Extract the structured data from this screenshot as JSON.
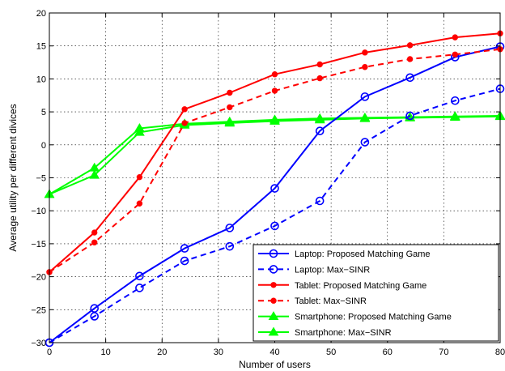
{
  "chart_data": {
    "type": "line",
    "xlabel": "Number of users",
    "ylabel": "Average utility per different divices",
    "xlim": [
      0,
      80
    ],
    "ylim": [
      -30,
      20
    ],
    "xticks": [
      0,
      10,
      20,
      30,
      40,
      50,
      60,
      70,
      80
    ],
    "yticks": [
      -30,
      -25,
      -20,
      -15,
      -10,
      -5,
      0,
      5,
      10,
      15,
      20
    ],
    "grid": true,
    "legend_position": "bottom-right",
    "x": [
      0,
      8,
      16,
      24,
      32,
      40,
      48,
      56,
      64,
      72,
      80
    ],
    "series": [
      {
        "name": "Laptop: Proposed Matching Game",
        "values": [
          -30,
          -24.8,
          -19.9,
          -15.7,
          -12.6,
          -6.6,
          2.1,
          7.3,
          10.2,
          13.3,
          14.9
        ],
        "color": "#0000ff",
        "dash": "solid",
        "marker": "circle-open"
      },
      {
        "name": "Laptop: Max−SINR",
        "values": [
          -30,
          -26.0,
          -21.7,
          -17.6,
          -15.4,
          -12.3,
          -8.5,
          0.4,
          4.4,
          6.7,
          8.5
        ],
        "color": "#0000ff",
        "dash": "dashed",
        "marker": "circle-open"
      },
      {
        "name": "Tablet: Proposed Matching Game",
        "values": [
          -19.3,
          -13.3,
          -4.9,
          5.4,
          7.9,
          10.7,
          12.2,
          14.0,
          15.1,
          16.3,
          16.9
        ],
        "color": "#ff0000",
        "dash": "solid",
        "marker": "dot"
      },
      {
        "name": "Tablet: Max−SINR",
        "values": [
          -19.3,
          -14.8,
          -8.9,
          3.3,
          5.7,
          8.2,
          10.1,
          11.8,
          13.0,
          13.7,
          14.5
        ],
        "color": "#ff0000",
        "dash": "dashed",
        "marker": "dot"
      },
      {
        "name": "Smartphone: Proposed Matching Game",
        "values": [
          -7.5,
          -3.5,
          2.5,
          3.2,
          3.5,
          3.8,
          4.0,
          4.1,
          4.2,
          4.3,
          4.4
        ],
        "color": "#00ff00",
        "dash": "solid",
        "marker": "triangle"
      },
      {
        "name": "Smartphone: Max−SINR",
        "values": [
          -7.5,
          -4.6,
          1.9,
          3.0,
          3.3,
          3.6,
          3.8,
          4.0,
          4.1,
          4.2,
          4.3
        ],
        "color": "#00ff00",
        "dash": "solid",
        "marker": "triangle"
      }
    ]
  }
}
